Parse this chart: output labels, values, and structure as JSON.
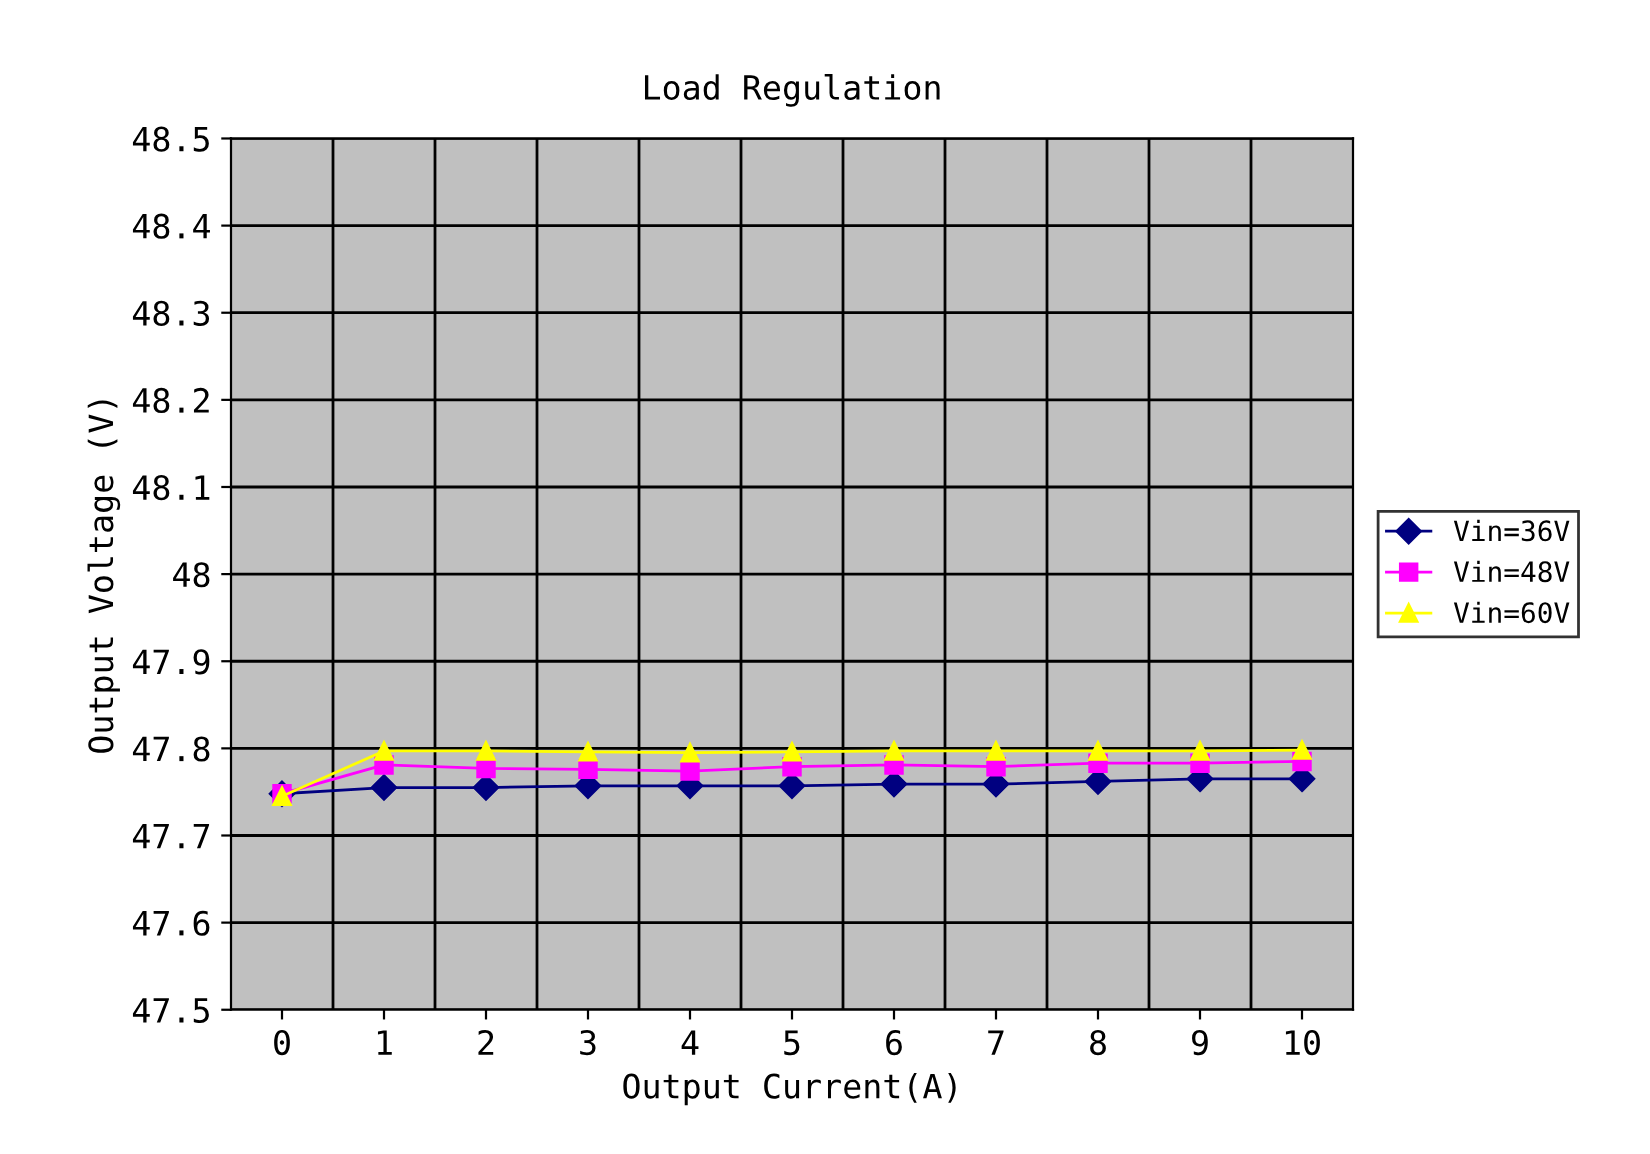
{
  "chart_data": {
    "type": "line",
    "title": "Load Regulation",
    "xlabel": "Output Current(A)",
    "ylabel": "Output Voltage (V)",
    "categories": [
      "0",
      "1",
      "2",
      "3",
      "4",
      "5",
      "6",
      "7",
      "8",
      "9",
      "10"
    ],
    "series": [
      {
        "name": "Vin=36V",
        "color": "#000080",
        "marker": "diamond",
        "values": [
          47.748,
          47.755,
          47.755,
          47.757,
          47.757,
          47.757,
          47.759,
          47.759,
          47.762,
          47.765,
          47.765
        ]
      },
      {
        "name": "Vin=48V",
        "color": "#ff00ff",
        "marker": "square",
        "values": [
          47.748,
          47.781,
          47.777,
          47.776,
          47.774,
          47.779,
          47.781,
          47.779,
          47.783,
          47.783,
          47.785
        ]
      },
      {
        "name": "Vin=60V",
        "color": "#ffff00",
        "marker": "triangle",
        "values": [
          47.745,
          47.797,
          47.797,
          47.796,
          47.795,
          47.796,
          47.797,
          47.797,
          47.797,
          47.797,
          47.798
        ]
      }
    ],
    "ylim": [
      47.5,
      48.5
    ],
    "yticks": [
      47.5,
      47.6,
      47.7,
      47.8,
      47.9,
      {
        "value": 48.0,
        "label": "48"
      },
      48.1,
      48.2,
      48.3,
      48.4,
      48.5
    ],
    "grid": true,
    "legend": "right",
    "line_style": "solid"
  }
}
